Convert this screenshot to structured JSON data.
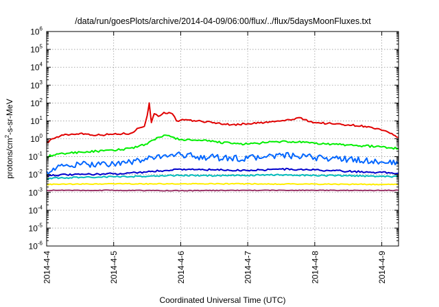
{
  "chart_data": {
    "type": "line",
    "title": "/data/run/goesPlots/archive/2014-04-09/06:00/flux/../flux/5daysMoonFluxes.txt",
    "xlabel": "Coordinated Universal Time (UTC)",
    "ylabel": {
      "base": "protons/cm",
      "sup": "2",
      "rest": "-s-sr-MeV"
    },
    "xscale": "linear",
    "yscale": "log",
    "grid": true,
    "xlim": [
      "2014-04-04T00:00",
      "2014-04-09T06:00"
    ],
    "ylim": [
      1e-06,
      1000000.0
    ],
    "x_tick_labels": [
      "2014-4-4",
      "2014-4-5",
      "2014-4-6",
      "2014-4-7",
      "2014-4-8",
      "2014-4-9"
    ],
    "y_tick_labels": [
      {
        "base": "10",
        "exp": "-6"
      },
      {
        "base": "10",
        "exp": "-5"
      },
      {
        "base": "10",
        "exp": "-4"
      },
      {
        "base": "10",
        "exp": "-3"
      },
      {
        "base": "10",
        "exp": "-2"
      },
      {
        "base": "10",
        "exp": "-1"
      },
      {
        "base": "10",
        "exp": "0"
      },
      {
        "base": "10",
        "exp": "1"
      },
      {
        "base": "10",
        "exp": "2"
      },
      {
        "base": "10",
        "exp": "3"
      },
      {
        "base": "10",
        "exp": "4"
      },
      {
        "base": "10",
        "exp": "5"
      },
      {
        "base": "10",
        "exp": "6"
      }
    ],
    "series": [
      {
        "color": "#e00000",
        "points": [
          [
            "2014-04-04T00:00",
            0.6
          ],
          [
            "2014-04-04T02:00",
            1.0
          ],
          [
            "2014-04-04T06:00",
            1.6
          ],
          [
            "2014-04-04T12:00",
            2.0
          ],
          [
            "2014-04-04T18:00",
            1.6
          ],
          [
            "2014-04-05T00:00",
            1.8
          ],
          [
            "2014-04-05T06:00",
            2.0
          ],
          [
            "2014-04-05T09:00",
            4.0
          ],
          [
            "2014-04-05T11:00",
            5.0
          ],
          [
            "2014-04-05T12:00",
            20
          ],
          [
            "2014-04-05T12:45",
            100
          ],
          [
            "2014-04-05T13:30",
            8
          ],
          [
            "2014-04-05T14:30",
            25
          ],
          [
            "2014-04-05T16:00",
            18
          ],
          [
            "2014-04-05T18:00",
            30
          ],
          [
            "2014-04-05T21:00",
            25
          ],
          [
            "2014-04-05T22:30",
            10
          ],
          [
            "2014-04-06T00:00",
            11
          ],
          [
            "2014-04-06T06:00",
            10
          ],
          [
            "2014-04-06T12:00",
            8
          ],
          [
            "2014-04-06T18:00",
            6
          ],
          [
            "2014-04-07T00:00",
            7
          ],
          [
            "2014-04-07T06:00",
            8
          ],
          [
            "2014-04-07T12:00",
            10
          ],
          [
            "2014-04-07T16:00",
            12
          ],
          [
            "2014-04-07T18:00",
            15
          ],
          [
            "2014-04-08T00:00",
            8
          ],
          [
            "2014-04-08T06:00",
            7
          ],
          [
            "2014-04-08T12:00",
            6
          ],
          [
            "2014-04-08T18:00",
            5
          ],
          [
            "2014-04-09T00:00",
            3
          ],
          [
            "2014-04-09T03:00",
            2.0
          ],
          [
            "2014-04-09T06:00",
            1.2
          ]
        ]
      },
      {
        "color": "#00ee00",
        "points": [
          [
            "2014-04-04T00:00",
            0.1
          ],
          [
            "2014-04-04T06:00",
            0.15
          ],
          [
            "2014-04-04T12:00",
            0.18
          ],
          [
            "2014-04-04T18:00",
            0.2
          ],
          [
            "2014-04-05T00:00",
            0.22
          ],
          [
            "2014-04-05T06:00",
            0.3
          ],
          [
            "2014-04-05T12:00",
            0.5
          ],
          [
            "2014-04-05T16:00",
            1.2
          ],
          [
            "2014-04-05T18:00",
            1.6
          ],
          [
            "2014-04-06T00:00",
            0.9
          ],
          [
            "2014-04-06T06:00",
            0.8
          ],
          [
            "2014-04-06T12:00",
            0.7
          ],
          [
            "2014-04-06T18:00",
            0.55
          ],
          [
            "2014-04-07T00:00",
            0.5
          ],
          [
            "2014-04-07T06:00",
            0.6
          ],
          [
            "2014-04-07T12:00",
            0.7
          ],
          [
            "2014-04-07T18:00",
            0.65
          ],
          [
            "2014-04-08T00:00",
            0.55
          ],
          [
            "2014-04-08T06:00",
            0.5
          ],
          [
            "2014-04-08T12:00",
            0.45
          ],
          [
            "2014-04-08T18:00",
            0.4
          ],
          [
            "2014-04-09T00:00",
            0.35
          ],
          [
            "2014-04-09T06:00",
            0.28
          ]
        ]
      },
      {
        "color": "#0066ff",
        "points": [
          [
            "2014-04-04T00:00",
            0.015
          ],
          [
            "2014-04-04T06:00",
            0.03
          ],
          [
            "2014-04-04T12:00",
            0.035
          ],
          [
            "2014-04-04T18:00",
            0.04
          ],
          [
            "2014-04-05T00:00",
            0.04
          ],
          [
            "2014-04-05T06:00",
            0.05
          ],
          [
            "2014-04-05T12:00",
            0.07
          ],
          [
            "2014-04-05T18:00",
            0.12
          ],
          [
            "2014-04-06T00:00",
            0.13
          ],
          [
            "2014-04-06T06:00",
            0.1
          ],
          [
            "2014-04-06T12:00",
            0.09
          ],
          [
            "2014-04-06T18:00",
            0.08
          ],
          [
            "2014-04-07T00:00",
            0.08
          ],
          [
            "2014-04-07T06:00",
            0.1
          ],
          [
            "2014-04-07T12:00",
            0.12
          ],
          [
            "2014-04-07T18:00",
            0.1
          ],
          [
            "2014-04-08T00:00",
            0.09
          ],
          [
            "2014-04-08T06:00",
            0.08
          ],
          [
            "2014-04-08T12:00",
            0.07
          ],
          [
            "2014-04-08T18:00",
            0.06
          ],
          [
            "2014-04-09T00:00",
            0.05
          ],
          [
            "2014-04-09T06:00",
            0.04
          ]
        ]
      },
      {
        "color": "#0000cc",
        "points": [
          [
            "2014-04-04T00:00",
            0.009
          ],
          [
            "2014-04-04T12:00",
            0.01
          ],
          [
            "2014-04-05T00:00",
            0.011
          ],
          [
            "2014-04-05T12:00",
            0.014
          ],
          [
            "2014-04-06T00:00",
            0.02
          ],
          [
            "2014-04-06T12:00",
            0.018
          ],
          [
            "2014-04-07T00:00",
            0.017
          ],
          [
            "2014-04-07T12:00",
            0.02
          ],
          [
            "2014-04-08T00:00",
            0.018
          ],
          [
            "2014-04-08T12:00",
            0.015
          ],
          [
            "2014-04-09T00:00",
            0.013
          ],
          [
            "2014-04-09T06:00",
            0.012
          ]
        ]
      },
      {
        "color": "#00bbbb",
        "points": [
          [
            "2014-04-04T00:00",
            0.006
          ],
          [
            "2014-04-04T12:00",
            0.007
          ],
          [
            "2014-04-05T00:00",
            0.0075
          ],
          [
            "2014-04-05T12:00",
            0.008
          ],
          [
            "2014-04-06T00:00",
            0.009
          ],
          [
            "2014-04-06T12:00",
            0.0085
          ],
          [
            "2014-04-07T00:00",
            0.009
          ],
          [
            "2014-04-07T12:00",
            0.0095
          ],
          [
            "2014-04-08T00:00",
            0.009
          ],
          [
            "2014-04-08T12:00",
            0.0085
          ],
          [
            "2014-04-09T00:00",
            0.008
          ],
          [
            "2014-04-09T06:00",
            0.0075
          ]
        ]
      },
      {
        "color": "#ffee00",
        "points": [
          [
            "2014-04-04T00:00",
            0.0028
          ],
          [
            "2014-04-05T00:00",
            0.003
          ],
          [
            "2014-04-06T00:00",
            0.003
          ],
          [
            "2014-04-07T00:00",
            0.003
          ],
          [
            "2014-04-08T00:00",
            0.0029
          ],
          [
            "2014-04-09T00:00",
            0.0028
          ],
          [
            "2014-04-09T06:00",
            0.0028
          ]
        ]
      },
      {
        "color": "#993366",
        "points": [
          [
            "2014-04-04T00:00",
            0.0013
          ],
          [
            "2014-04-05T00:00",
            0.0013
          ],
          [
            "2014-04-06T00:00",
            0.00125
          ],
          [
            "2014-04-07T00:00",
            0.0013
          ],
          [
            "2014-04-08T00:00",
            0.0013
          ],
          [
            "2014-04-09T00:00",
            0.0013
          ],
          [
            "2014-04-09T06:00",
            0.0013
          ]
        ]
      }
    ]
  }
}
